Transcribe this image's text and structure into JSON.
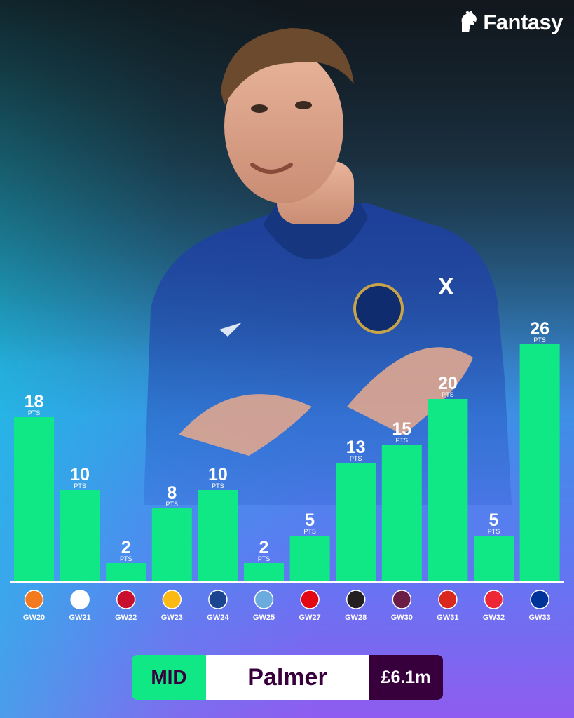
{
  "brand": {
    "name": "Fantasy",
    "logo_icon": "premier-league-lion-icon"
  },
  "player": {
    "position": "MID",
    "name": "Palmer",
    "price": "£6.1m"
  },
  "colors": {
    "bar": "#10e886",
    "purple": "#37003c",
    "white": "#ffffff"
  },
  "chart_data": {
    "type": "bar",
    "unit_label": "PTS",
    "categories": [
      "GW20",
      "GW21",
      "GW22",
      "GW23",
      "GW24",
      "GW25",
      "GW27",
      "GW28",
      "GW30",
      "GW31",
      "GW32",
      "GW33"
    ],
    "values": [
      18,
      10,
      2,
      8,
      10,
      2,
      5,
      13,
      15,
      20,
      5,
      26
    ],
    "opponent_icons": [
      "luton-crest-icon",
      "fulham-crest-icon",
      "liverpool-crest-icon",
      "wolves-crest-icon",
      "crystal-palace-crest-icon",
      "man-city-crest-icon",
      "brentford-crest-icon",
      "newcastle-crest-icon",
      "burnley-crest-icon",
      "man-utd-crest-icon",
      "sheffield-utd-crest-icon",
      "everton-crest-icon"
    ],
    "ylim": [
      0,
      26
    ],
    "grid": false,
    "legend": "none"
  }
}
